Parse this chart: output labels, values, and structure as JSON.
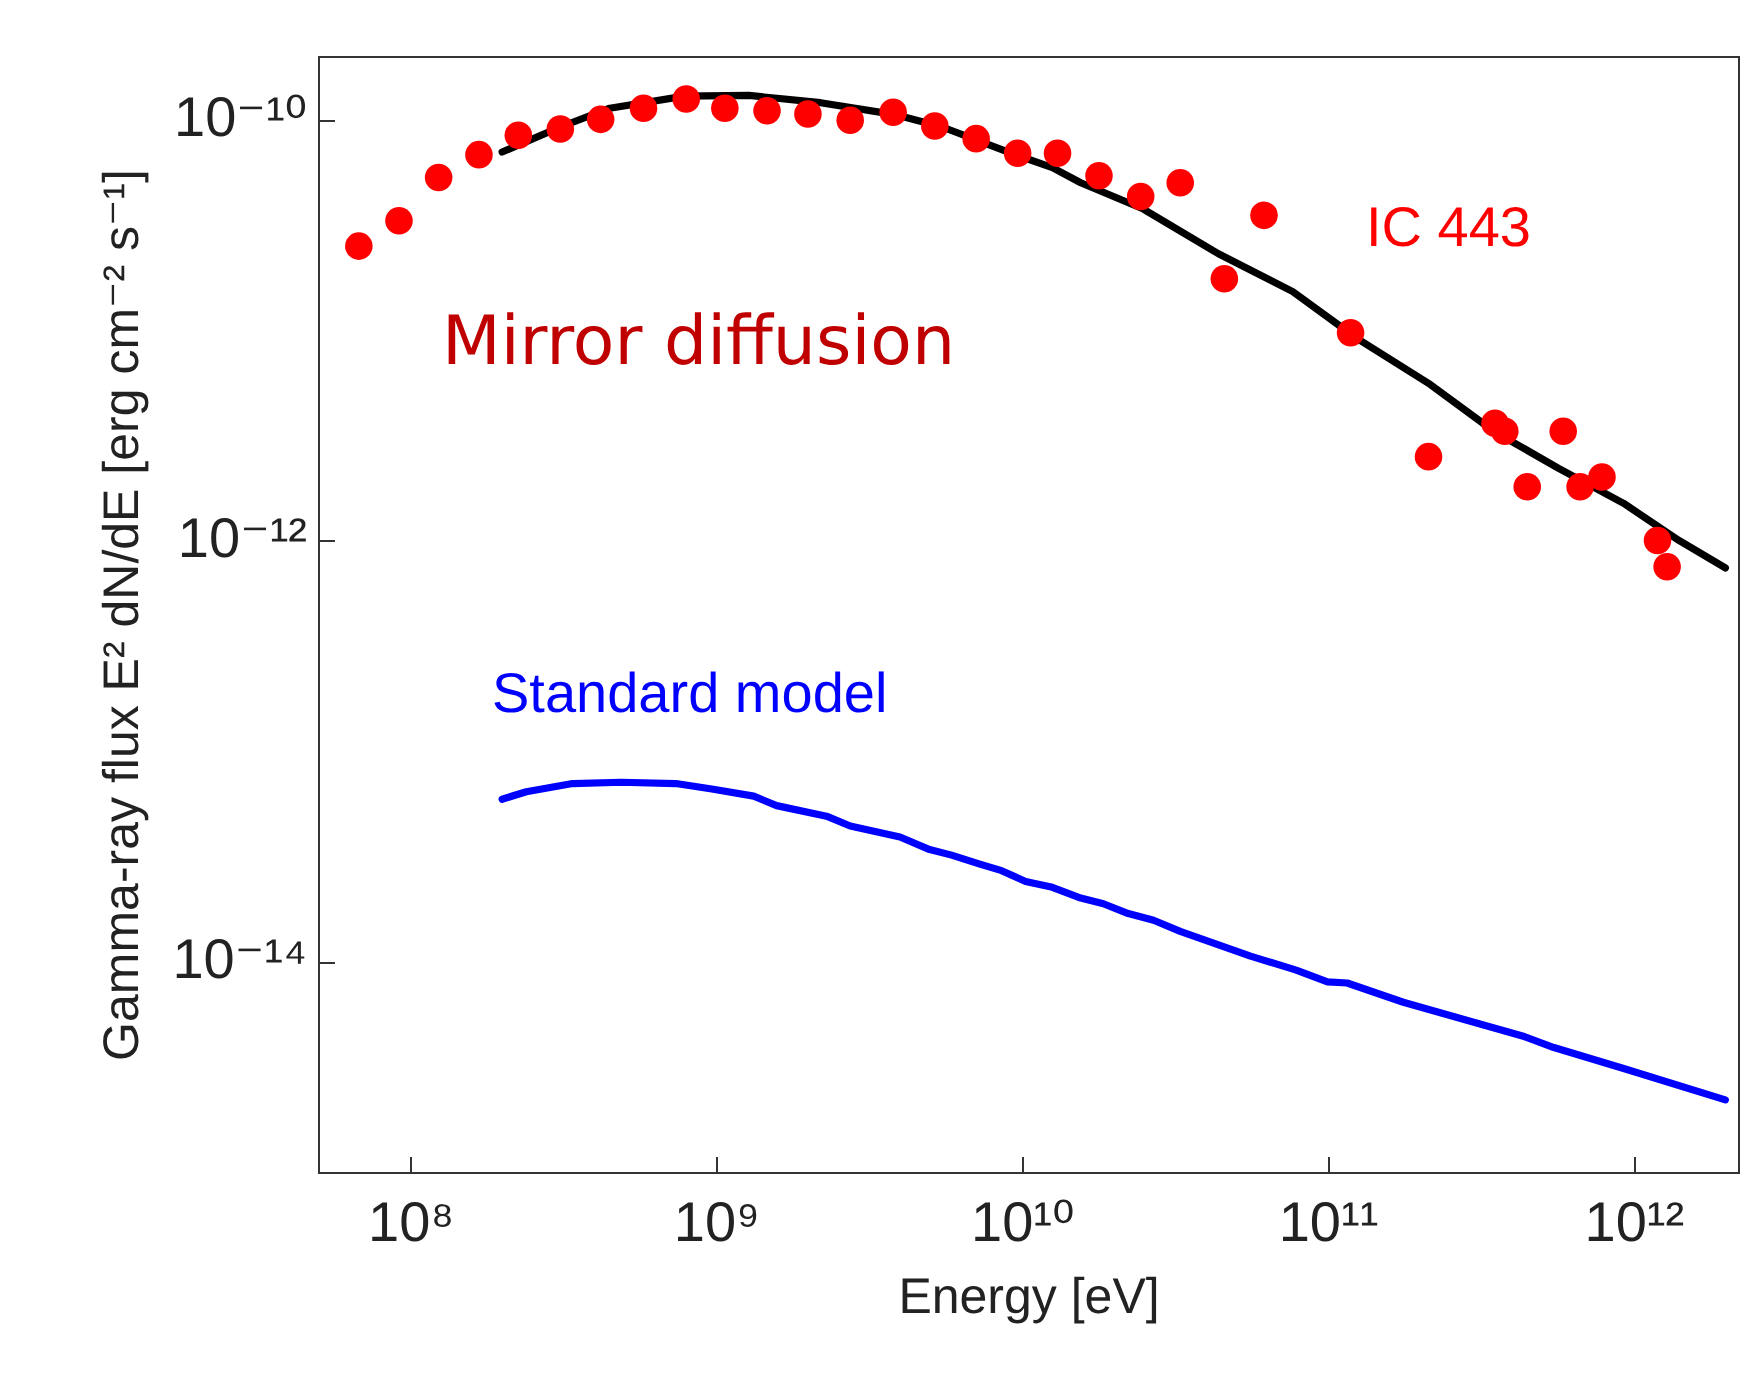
{
  "chart_data": {
    "type": "line",
    "xlabel": "Energy [eV]",
    "ylabel": "Gamma-ray flux E² dN/dE [erg cm⁻² s⁻¹]",
    "log": "xy",
    "grid": false,
    "annotations": [
      "Mirror diffusion"
    ],
    "xlim": [
      50000000.0,
      2200000000000.0
    ],
    "ylim": [
      1e-15,
      2e-10
    ],
    "xticks": [
      {
        "value": 100000000.0,
        "label": "10⁸"
      },
      {
        "value": 1000000000.0,
        "label": "10⁹"
      },
      {
        "value": 10000000000.0,
        "label": "10¹⁰"
      },
      {
        "value": 100000000000.0,
        "label": "10¹¹"
      },
      {
        "value": 1000000000000.0,
        "label": "10¹²"
      }
    ],
    "yticks": [
      {
        "value": 1e-14,
        "label": "10⁻¹⁴"
      },
      {
        "value": 1e-12,
        "label": "10⁻¹²"
      },
      {
        "value": 1e-10,
        "label": "10⁻¹⁰"
      }
    ],
    "series": [
      {
        "color": "#000000",
        "line_style": "solid",
        "x": [
          200000000.0,
          310000000.0,
          450000000.0,
          790000000.0,
          1280000000.0,
          2200000000.0,
          3900000000.0,
          5500000000.0,
          9000000000.0,
          12600000000.0,
          15600000000.0,
          25000000000.0,
          44000000000.0,
          77000000000.0,
          125000000000.0,
          217000000000.0,
          350000000000.0,
          570000000000.0,
          930000000000.0,
          1410000000000.0,
          2000000000000.0
        ],
        "values": [
          7e-11,
          9.2e-11,
          1.13e-10,
          1.29e-10,
          1.3e-10,
          1.2e-10,
          1.05e-10,
          9.2e-11,
          7e-11,
          5.9e-11,
          5e-11,
          3.75e-11,
          2.3e-11,
          1.52e-11,
          9.1e-12,
          5.5e-12,
          3.3e-12,
          2.2e-12,
          1.5e-12,
          1e-12,
          7.4e-13
        ]
      },
      {
        "name": "Standard model",
        "color": "#0000ff",
        "line_style": "solid",
        "x": [
          200000000.0,
          240000000.0,
          340000000.0,
          490000000.0,
          740000000.0,
          970000000.0,
          1330000000.0,
          1580000000.0,
          2300000000.0,
          2750000000.0,
          4000000000.0,
          5000000000.0,
          5900000000.0,
          7300000000.0,
          8600000000.0,
          10300000000.0,
          12600000000.0,
          15600000000.0,
          18500000000.0,
          22000000000.0,
          27000000000.0,
          33000000000.0,
          56000000000.0,
          79000000000.0,
          100000000000.0,
          116000000000.0,
          177000000000.0,
          440000000000.0,
          550000000000.0,
          930000000000.0,
          2000000000000.0
        ],
        "values": [
          5.9e-14,
          6.4e-14,
          7e-14,
          7.1e-14,
          7e-14,
          6.6e-14,
          6.1e-14,
          5.5e-14,
          4.9e-14,
          4.4e-14,
          3.9e-14,
          3.4e-14,
          3.2e-14,
          2.9e-14,
          2.7e-14,
          2.4e-14,
          2.25e-14,
          2e-14,
          1.88e-14,
          1.7e-14,
          1.57e-14,
          1.39e-14,
          1.06e-14,
          9.1e-15,
          8e-15,
          7.9e-15,
          6.4e-15,
          4.4e-15,
          3.9e-15,
          3.1e-15,
          2.2e-15
        ]
      },
      {
        "name": "IC 443",
        "type": "scatter",
        "color": "#ff0000",
        "marker": "circle",
        "x": [
          68000000.0,
          92000000.0,
          124000000.0,
          168000000.0,
          226000000.0,
          310000000.0,
          420000000.0,
          580000000.0,
          800000000.0,
          1070000000.0,
          1470000000.0,
          2000000000.0,
          2750000000.0,
          3800000000.0,
          5200000000.0,
          7100000000.0,
          9700000000.0,
          13100000000.0,
          17900000000.0,
          24500000000.0,
          33000000000.0,
          46000000000.0,
          62000000000.0,
          119000000000.0,
          214000000000.0,
          353000000000.0,
          380000000000.0,
          450000000000.0,
          590000000000.0,
          670000000000.0,
          790000000000.0,
          1200000000000.0,
          1290000000000.0
        ],
        "values": [
          2.5e-11,
          3.3e-11,
          5.3e-11,
          6.8e-11,
          8.4e-11,
          9e-11,
          1e-10,
          1.13e-10,
          1.25e-10,
          1.13e-10,
          1.1e-10,
          1.06e-10,
          9.9e-11,
          1.08e-10,
          9.3e-11,
          8.1e-11,
          6.9e-11,
          6.9e-11,
          5.4e-11,
          4.3e-11,
          5e-11,
          1.75e-11,
          3.5e-11,
          9.7e-12,
          2.5e-12,
          3.6e-12,
          3.3e-12,
          1.8e-12,
          3.3e-12,
          1.8e-12,
          2e-12,
          1e-12,
          7.5e-13
        ]
      }
    ]
  }
}
